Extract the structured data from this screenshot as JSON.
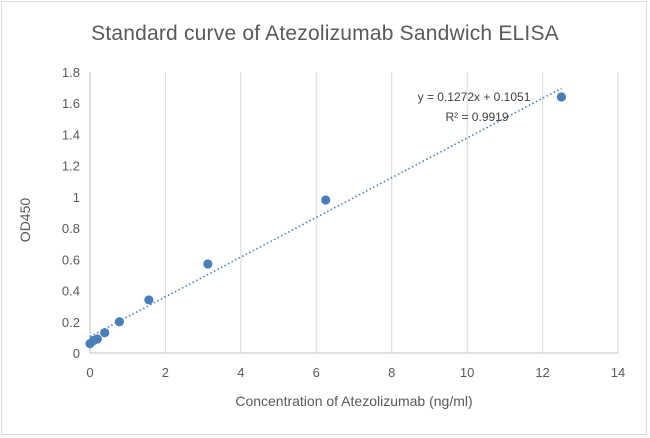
{
  "chart_data": {
    "type": "scatter",
    "title": "Standard curve of Atezolizumab Sandwich ELISA",
    "xlabel": "Concentration of Atezolizumab (ng/ml)",
    "ylabel": "OD450",
    "xlim": [
      0,
      14
    ],
    "ylim": [
      0,
      1.8
    ],
    "xticks": [
      0,
      2,
      4,
      6,
      8,
      10,
      12,
      14
    ],
    "yticks": [
      0,
      0.2,
      0.4,
      0.6,
      0.8,
      1,
      1.2,
      1.4,
      1.6,
      1.8
    ],
    "grid": "vertical",
    "points": [
      {
        "x": 0,
        "y": 0.06
      },
      {
        "x": 0.098,
        "y": 0.08
      },
      {
        "x": 0.195,
        "y": 0.09
      },
      {
        "x": 0.39,
        "y": 0.13
      },
      {
        "x": 0.78,
        "y": 0.2
      },
      {
        "x": 1.56,
        "y": 0.34
      },
      {
        "x": 3.125,
        "y": 0.57
      },
      {
        "x": 6.25,
        "y": 0.98
      },
      {
        "x": 12.5,
        "y": 1.64
      }
    ],
    "trendline": {
      "slope": 0.1272,
      "intercept": 0.1051,
      "x_range": [
        0,
        12.5
      ],
      "style": "dotted"
    },
    "equation_label": "y = 0.1272x + 0.1051",
    "r2_label": "R² = 0.9919",
    "colors": {
      "points": "#4a7ebb",
      "trendline": "#4a7ebb",
      "grid": "#d9d9d9",
      "text": "#595959"
    }
  }
}
